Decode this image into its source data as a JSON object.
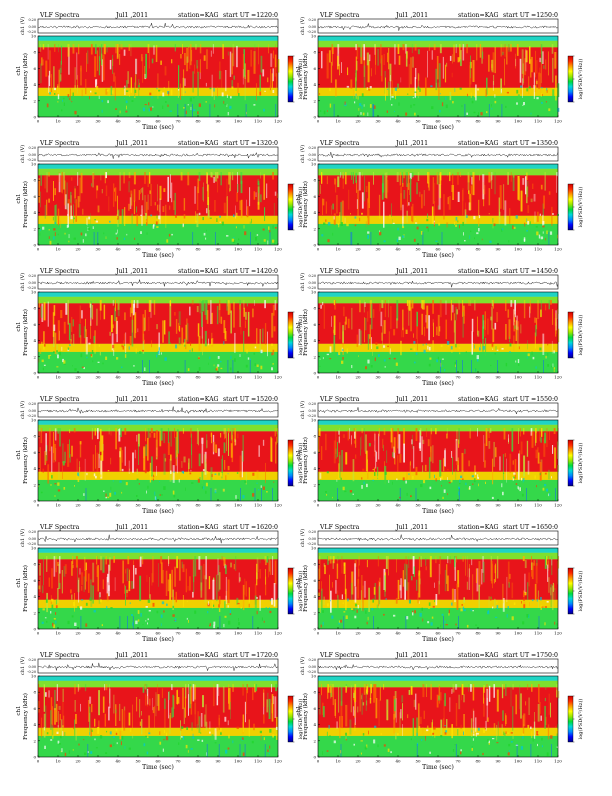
{
  "page": {
    "title_prefix": "VLF Spectra",
    "date": "Jul1 ,2011",
    "station_label": "station=KAG",
    "ut_label": "start UT ="
  },
  "axes": {
    "ch_label": "ch1 (V)",
    "ch_ticks": [
      "0.20",
      "0.00",
      "-0.20"
    ],
    "freq_label": "Frequency (kHz)",
    "freq_ticks": [
      "0",
      "2",
      "4",
      "6",
      "8",
      "10"
    ],
    "ch_side_label": "ch1",
    "time_label": "Time (sec)",
    "time_ticks": [
      "0",
      "10",
      "20",
      "30",
      "40",
      "50",
      "60",
      "70",
      "80",
      "90",
      "100",
      "110",
      "120"
    ],
    "colorbar_label": "log(PSD(V²/Hz))",
    "colorbar_colors": [
      "#d00000",
      "#ff2a00",
      "#ff9900",
      "#ffff00",
      "#9be800",
      "#00dd3c",
      "#00d8d8",
      "#0088ff",
      "#0000ff",
      "#000088"
    ]
  },
  "chart_data": [
    {
      "type": "heatmap",
      "title": "VLF Spectra",
      "date": "Jul1 ,2011",
      "station": "KAG",
      "start_ut": "1220:0",
      "xlabel": "Time (sec)",
      "ylabel": "Frequency (kHz)",
      "xlim": [
        0,
        120
      ],
      "ylim": [
        0,
        10
      ],
      "colorbar": "log(PSD(V²/Hz))"
    },
    {
      "type": "heatmap",
      "title": "VLF Spectra",
      "date": "Jul1 ,2011",
      "station": "KAG",
      "start_ut": "1250:0",
      "xlabel": "Time (sec)",
      "ylabel": "Frequency (kHz)",
      "xlim": [
        0,
        120
      ],
      "ylim": [
        0,
        10
      ],
      "colorbar": "log(PSD(V²/Hz))"
    },
    {
      "type": "heatmap",
      "title": "VLF Spectra",
      "date": "Jul1 ,2011",
      "station": "KAG",
      "start_ut": "1320:0",
      "xlabel": "Time (sec)",
      "ylabel": "Frequency (kHz)",
      "xlim": [
        0,
        120
      ],
      "ylim": [
        0,
        10
      ],
      "colorbar": "log(PSD(V²/Hz))"
    },
    {
      "type": "heatmap",
      "title": "VLF Spectra",
      "date": "Jul1 ,2011",
      "station": "KAG",
      "start_ut": "1350:0",
      "xlabel": "Time (sec)",
      "ylabel": "Frequency (kHz)",
      "xlim": [
        0,
        120
      ],
      "ylim": [
        0,
        10
      ],
      "colorbar": "log(PSD(V²/Hz))"
    },
    {
      "type": "heatmap",
      "title": "VLF Spectra",
      "date": "Jul1 ,2011",
      "station": "KAG",
      "start_ut": "1420:0",
      "xlabel": "Time (sec)",
      "ylabel": "Frequency (kHz)",
      "xlim": [
        0,
        120
      ],
      "ylim": [
        0,
        10
      ],
      "colorbar": "log(PSD(V²/Hz))"
    },
    {
      "type": "heatmap",
      "title": "VLF Spectra",
      "date": "Jul1 ,2011",
      "station": "KAG",
      "start_ut": "1450:0",
      "xlabel": "Time (sec)",
      "ylabel": "Frequency (kHz)",
      "xlim": [
        0,
        120
      ],
      "ylim": [
        0,
        10
      ],
      "colorbar": "log(PSD(V²/Hz))"
    },
    {
      "type": "heatmap",
      "title": "VLF Spectra",
      "date": "Jul1 ,2011",
      "station": "KAG",
      "start_ut": "1520:0",
      "xlabel": "Time (sec)",
      "ylabel": "Frequency (kHz)",
      "xlim": [
        0,
        120
      ],
      "ylim": [
        0,
        10
      ],
      "colorbar": "log(PSD(V²/Hz))"
    },
    {
      "type": "heatmap",
      "title": "VLF Spectra",
      "date": "Jul1 ,2011",
      "station": "KAG",
      "start_ut": "1550:0",
      "xlabel": "Time (sec)",
      "ylabel": "Frequency (kHz)",
      "xlim": [
        0,
        120
      ],
      "ylim": [
        0,
        10
      ],
      "colorbar": "log(PSD(V²/Hz))"
    },
    {
      "type": "heatmap",
      "title": "VLF Spectra",
      "date": "Jul1 ,2011",
      "station": "KAG",
      "start_ut": "1620:0",
      "xlabel": "Time (sec)",
      "ylabel": "Frequency (kHz)",
      "xlim": [
        0,
        120
      ],
      "ylim": [
        0,
        10
      ],
      "colorbar": "log(PSD(V²/Hz))"
    },
    {
      "type": "heatmap",
      "title": "VLF Spectra",
      "date": "Jul1 ,2011",
      "station": "KAG",
      "start_ut": "1650:0",
      "xlabel": "Time (sec)",
      "ylabel": "Frequency (kHz)",
      "xlim": [
        0,
        120
      ],
      "ylim": [
        0,
        10
      ],
      "colorbar": "log(PSD(V²/Hz))"
    },
    {
      "type": "heatmap",
      "title": "VLF Spectra",
      "date": "Jul1 ,2011",
      "station": "KAG",
      "start_ut": "1720:0",
      "xlabel": "Time (sec)",
      "ylabel": "Frequency (kHz)",
      "xlim": [
        0,
        120
      ],
      "ylim": [
        0,
        10
      ],
      "colorbar": "log(PSD(V²/Hz))"
    },
    {
      "type": "heatmap",
      "title": "VLF Spectra",
      "date": "Jul1 ,2011",
      "station": "KAG",
      "start_ut": "1750:0",
      "xlabel": "Time (sec)",
      "ylabel": "Frequency (kHz)",
      "xlim": [
        0,
        120
      ],
      "ylim": [
        0,
        10
      ],
      "colorbar": "log(PSD(V²/Hz))"
    }
  ]
}
